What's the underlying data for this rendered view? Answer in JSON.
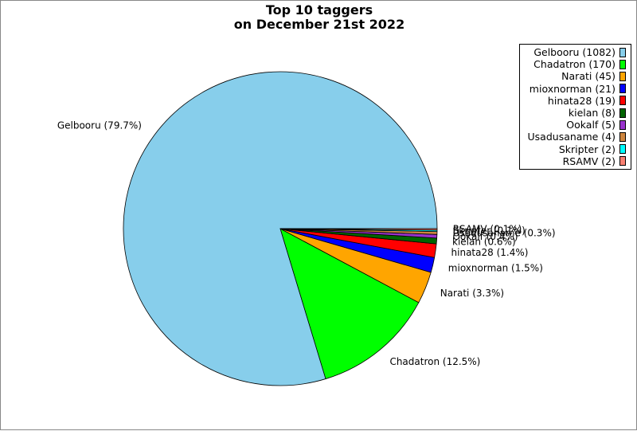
{
  "chart_data": {
    "type": "pie",
    "title": "Top 10 taggers",
    "subtitle": "on December 21st 2022",
    "legend_position": "top-right",
    "slices": [
      {
        "name": "Gelbooru",
        "value": 1082,
        "label": "Gelbooru (79.7%)",
        "legend": "Gelbooru (1082)",
        "color": "#87ceeb"
      },
      {
        "name": "Chadatron",
        "value": 170,
        "label": "Chadatron (12.5%)",
        "legend": "Chadatron (170)",
        "color": "#00ff00"
      },
      {
        "name": "Narati",
        "value": 45,
        "label": "Narati (3.3%)",
        "legend": "Narati (45)",
        "color": "#ffa500"
      },
      {
        "name": "mioxnorman",
        "value": 21,
        "label": "mioxnorman (1.5%)",
        "legend": "mioxnorman (21)",
        "color": "#0000ff"
      },
      {
        "name": "hinata28",
        "value": 19,
        "label": "hinata28 (1.4%)",
        "legend": "hinata28 (19)",
        "color": "#ff0000"
      },
      {
        "name": "kielan",
        "value": 8,
        "label": "kielan (0.6%)",
        "legend": "kielan (8)",
        "color": "#006400"
      },
      {
        "name": "Ookalf",
        "value": 5,
        "label": "Ookalf (0.4%)",
        "legend": "Ookalf (5)",
        "color": "#9932cc"
      },
      {
        "name": "Usadusaname",
        "value": 4,
        "label": "Usadusaname (0.3%)",
        "legend": "Usadusaname (4)",
        "color": "#cd853f"
      },
      {
        "name": "Skripter",
        "value": 2,
        "label": "Skripter (0.1%)",
        "legend": "Skripter (2)",
        "color": "#00ffff"
      },
      {
        "name": "RSAMV",
        "value": 2,
        "label": "RSAMV (0.1%)",
        "legend": "RSAMV (2)",
        "color": "#fa8072"
      }
    ]
  }
}
